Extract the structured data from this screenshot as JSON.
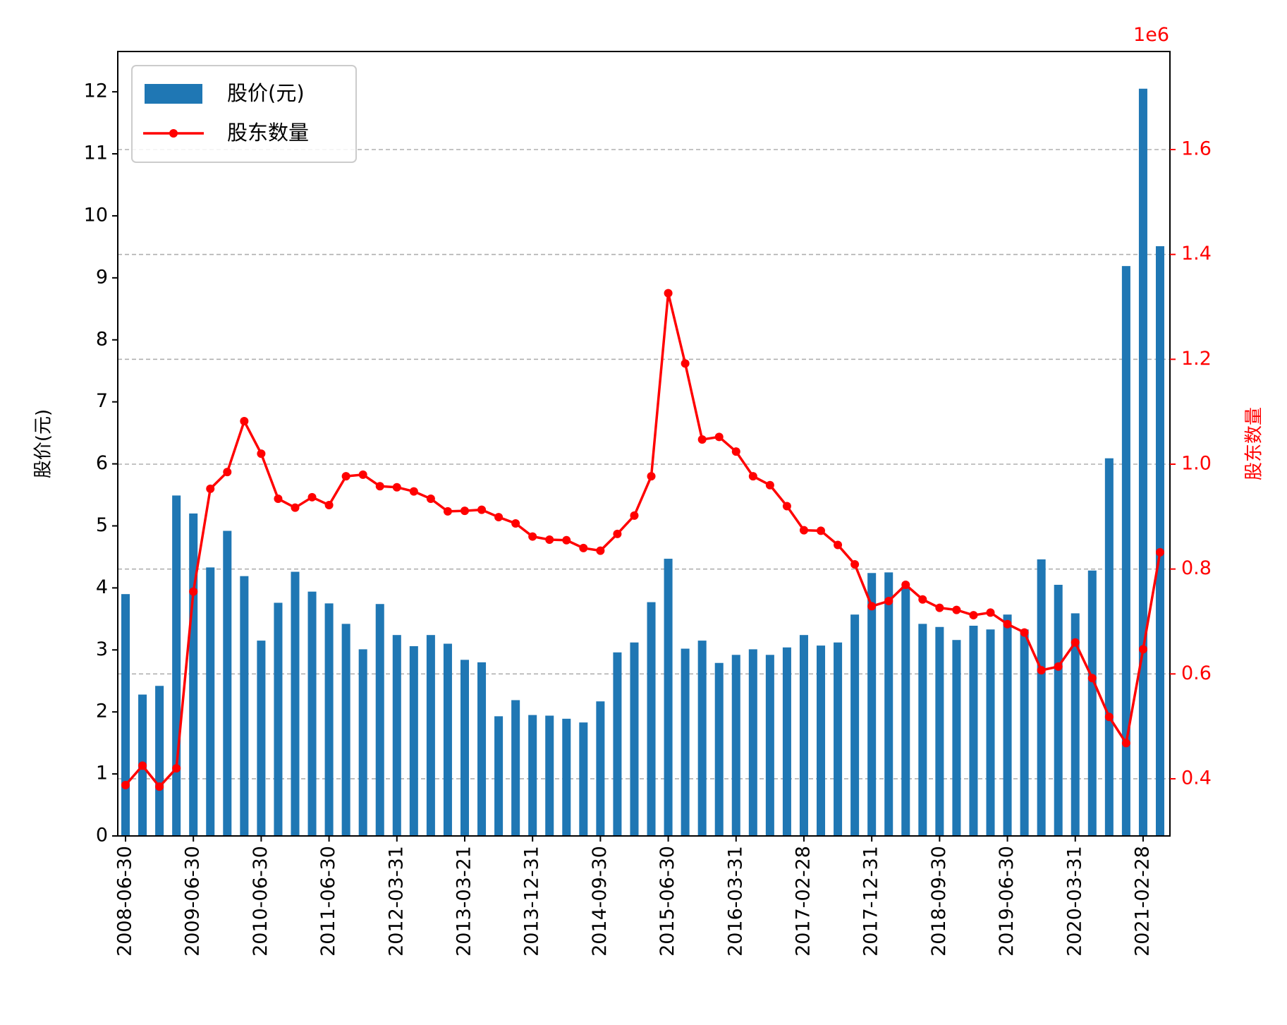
{
  "chart_data": {
    "type": "bar",
    "left_axis": {
      "label": "股价(元)",
      "ylim": [
        0,
        12.65
      ],
      "ticks": [
        "0",
        "1",
        "2",
        "3",
        "4",
        "5",
        "6",
        "7",
        "8",
        "9",
        "10",
        "11",
        "12"
      ]
    },
    "right_axis": {
      "label": "股东数量",
      "offset_text": "1e6",
      "ylim": [
        0.291,
        1.787
      ],
      "ticks": [
        "0.4",
        "0.6",
        "0.8",
        "1.0",
        "1.2",
        "1.4",
        "1.6"
      ],
      "color": "#ff0000"
    },
    "grid": "horizontal dashed at right-axis ticks",
    "legend": {
      "placement": "top-left",
      "entries": [
        "股价(元)",
        "股东数量"
      ]
    },
    "colors": {
      "bar": "#1f77b4",
      "line": "#ff0000",
      "grid": "#b0b0b0"
    },
    "x_tick_labels": [
      "2008-06-30",
      "2009-06-30",
      "2010-06-30",
      "2011-06-30",
      "2012-03-31",
      "2013-03-21",
      "2013-12-31",
      "2014-09-30",
      "2015-06-30",
      "2016-03-31",
      "2017-02-28",
      "2017-12-31",
      "2018-09-30",
      "2019-06-30",
      "2020-03-31",
      "2021-02-28"
    ],
    "x_tick_positions": [
      0,
      4,
      8,
      12,
      16,
      20,
      24,
      28,
      32,
      36,
      40,
      44,
      48,
      52,
      56,
      60
    ],
    "series": [
      {
        "name": "股价(元)",
        "type": "bar",
        "axis": "left",
        "values": [
          3.9,
          2.28,
          2.42,
          5.49,
          5.2,
          4.33,
          4.92,
          4.19,
          3.15,
          3.76,
          4.26,
          3.94,
          3.75,
          3.42,
          3.01,
          3.74,
          3.24,
          3.06,
          3.24,
          3.1,
          2.84,
          2.8,
          1.93,
          2.19,
          1.95,
          1.94,
          1.89,
          1.83,
          2.17,
          2.96,
          3.12,
          3.77,
          4.47,
          3.02,
          3.15,
          2.79,
          2.92,
          3.01,
          2.92,
          3.04,
          3.24,
          3.07,
          3.12,
          3.57,
          4.24,
          4.25,
          4.02,
          3.42,
          3.37,
          3.16,
          3.39,
          3.33,
          3.57,
          3.33,
          4.46,
          4.05,
          3.59,
          4.28,
          6.09,
          9.19,
          12.05,
          9.51
        ]
      },
      {
        "name": "股东数量",
        "type": "line",
        "axis": "right",
        "values": [
          0.388,
          0.425,
          0.385,
          0.42,
          0.757,
          0.953,
          0.985,
          1.082,
          1.02,
          0.934,
          0.917,
          0.937,
          0.922,
          0.977,
          0.98,
          0.958,
          0.956,
          0.948,
          0.934,
          0.91,
          0.911,
          0.913,
          0.899,
          0.887,
          0.862,
          0.856,
          0.855,
          0.84,
          0.835,
          0.867,
          0.902,
          0.977,
          1.326,
          1.192,
          1.047,
          1.052,
          1.024,
          0.977,
          0.96,
          0.92,
          0.874,
          0.873,
          0.846,
          0.809,
          0.729,
          0.739,
          0.77,
          0.742,
          0.726,
          0.722,
          0.712,
          0.717,
          0.695,
          0.679,
          0.607,
          0.614,
          0.66,
          0.592,
          0.518,
          0.468,
          0.647,
          0.832
        ]
      }
    ]
  }
}
